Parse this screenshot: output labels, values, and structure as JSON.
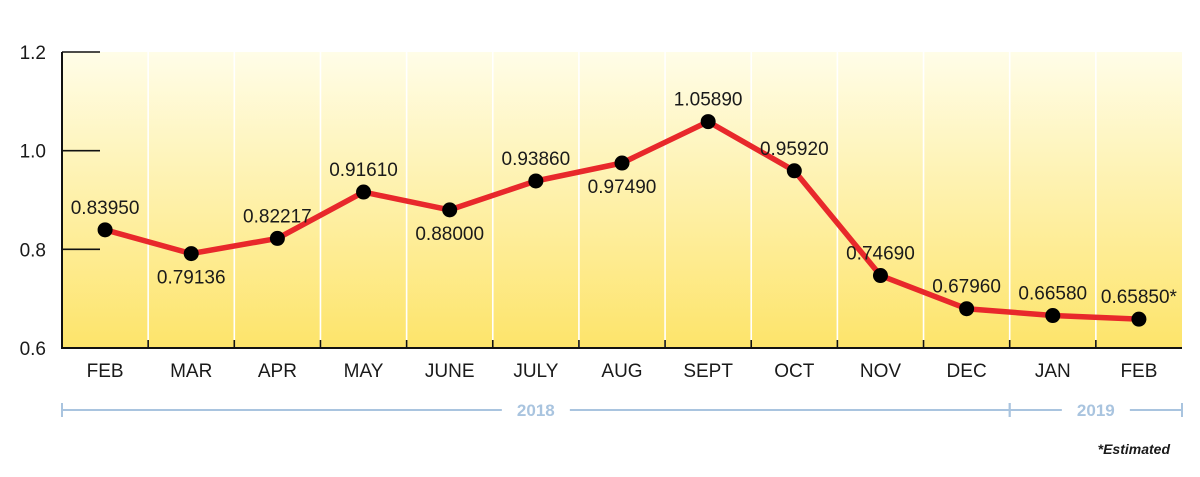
{
  "chart_data": {
    "type": "line",
    "categories": [
      "FEB",
      "MAR",
      "APR",
      "MAY",
      "JUNE",
      "JULY",
      "AUG",
      "SEPT",
      "OCT",
      "NOV",
      "DEC",
      "JAN",
      "FEB"
    ],
    "values": [
      0.8395,
      0.79136,
      0.82217,
      0.9161,
      0.88,
      0.9386,
      0.9749,
      1.0589,
      0.9592,
      0.7469,
      0.6796,
      0.6658,
      0.6585
    ],
    "data_labels": [
      "0.83950",
      "0.79136",
      "0.82217",
      "0.91610",
      "0.88000",
      "0.93860",
      "0.97490",
      "1.05890",
      "0.95920",
      "0.74690",
      "0.67960",
      "0.66580",
      "0.65850*"
    ],
    "label_position": [
      "above",
      "below",
      "above",
      "above",
      "below",
      "above",
      "below",
      "above",
      "above",
      "above",
      "above",
      "above",
      "above"
    ],
    "ylim": [
      0.6,
      1.2
    ],
    "yticks": [
      0.6,
      0.8,
      1.0,
      1.2
    ],
    "ytick_labels": [
      "0.6",
      "0.8",
      "1.0",
      "1.2"
    ],
    "title": "",
    "xlabel": "",
    "ylabel": "",
    "grid": "vertical",
    "background_gradient": [
      "#fffde8",
      "#fde46a"
    ],
    "line_color": "#e8282b",
    "marker_color": "#000000",
    "year_groups": [
      {
        "label": "2018",
        "start_index": 0,
        "end_index": 10
      },
      {
        "label": "2019",
        "start_index": 11,
        "end_index": 12
      }
    ],
    "year_bracket_color": "#a9c4df",
    "footnote": "*Estimated"
  }
}
